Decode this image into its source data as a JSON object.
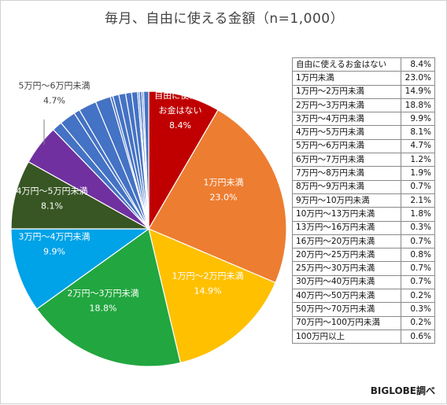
{
  "chart_data": {
    "type": "pie",
    "title": "毎月、自由に使える金額（n=1,000）",
    "slices": [
      {
        "label": "自由に使えるお金はない",
        "value": 8.4,
        "value_text": "8.4%",
        "color": "#C00000"
      },
      {
        "label": "1万円未満",
        "value": 23.0,
        "value_text": "23.0%",
        "color": "#ED7D31"
      },
      {
        "label": "1万円～2万円未満",
        "value": 14.9,
        "value_text": "14.9%",
        "color": "#FFC000"
      },
      {
        "label": "2万円～3万円未満",
        "value": 18.8,
        "value_text": "18.8%",
        "color": "#22A63F"
      },
      {
        "label": "3万円～4万円未満",
        "value": 9.9,
        "value_text": "9.9%",
        "color": "#00A2E8"
      },
      {
        "label": "4万円～5万円未満",
        "value": 8.1,
        "value_text": "8.1%",
        "color": "#375623"
      },
      {
        "label": "5万円～6万円未満",
        "value": 4.7,
        "value_text": "4.7%",
        "color": "#7030A0"
      },
      {
        "label": "6万円～7万円未満",
        "value": 1.2,
        "value_text": "1.2%",
        "color": "#4472C4"
      },
      {
        "label": "7万円～8万円未満",
        "value": 1.9,
        "value_text": "1.9%",
        "color": "#4472C4"
      },
      {
        "label": "8万円～9万円未満",
        "value": 0.7,
        "value_text": "0.7%",
        "color": "#4472C4"
      },
      {
        "label": "9万円～10万円未満",
        "value": 2.1,
        "value_text": "2.1%",
        "color": "#4472C4"
      },
      {
        "label": "10万円～13万円未満",
        "value": 1.8,
        "value_text": "1.8%",
        "color": "#4472C4"
      },
      {
        "label": "13万円～16万円未満",
        "value": 0.3,
        "value_text": "0.3%",
        "color": "#4472C4"
      },
      {
        "label": "16万円～20万円未満",
        "value": 0.7,
        "value_text": "0.7%",
        "color": "#4472C4"
      },
      {
        "label": "20万円～25万円未満",
        "value": 0.8,
        "value_text": "0.8%",
        "color": "#4472C4"
      },
      {
        "label": "25万円～30万円未満",
        "value": 0.7,
        "value_text": "0.7%",
        "color": "#4472C4"
      },
      {
        "label": "30万円～40万円未満",
        "value": 0.7,
        "value_text": "0.7%",
        "color": "#4472C4"
      },
      {
        "label": "40万円～50万円未満",
        "value": 0.2,
        "value_text": "0.2%",
        "color": "#4472C4"
      },
      {
        "label": "50万円～70万円未満",
        "value": 0.3,
        "value_text": "0.3%",
        "color": "#4472C4"
      },
      {
        "label": "70万円～100万円未満",
        "value": 0.2,
        "value_text": "0.2%",
        "color": "#4472C4"
      },
      {
        "label": "100万円以上",
        "value": 0.6,
        "value_text": "0.6%",
        "color": "#4472C4"
      }
    ],
    "pie_labels": [
      {
        "lines": [
          "自由に使える",
          "お金はない",
          "8.4%"
        ],
        "text_color": "#ffffff"
      },
      {
        "lines": [
          "1万円未満",
          "23.0%"
        ],
        "text_color": "#ffffff"
      },
      {
        "lines": [
          "1万円～2万円未満",
          "14.9%"
        ],
        "text_color": "#ffffff"
      },
      {
        "lines": [
          "2万円～3万円未満",
          "18.8%"
        ],
        "text_color": "#ffffff"
      },
      {
        "lines": [
          "3万円～4万円未満",
          "9.9%"
        ],
        "text_color": "#ffffff"
      },
      {
        "lines": [
          "4万円～5万円未満",
          "8.1%"
        ],
        "text_color": "#ffffff"
      },
      {
        "lines": [
          "5万円～6万円未満",
          "4.7%"
        ],
        "text_color": "#404040"
      }
    ],
    "legend": "table-right",
    "source": "BIGLOBE調べ"
  }
}
